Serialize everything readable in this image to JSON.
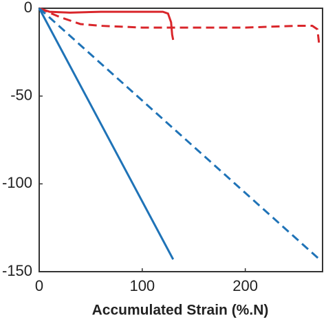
{
  "chart_data": {
    "type": "line",
    "x_label": "Accumulated Strain (%.N)",
    "xlim": [
      0,
      275
    ],
    "xticks": [
      0,
      100,
      200
    ],
    "ylim": [
      -150,
      0
    ],
    "yticks": [
      0,
      -50,
      -100,
      -150
    ],
    "series": [
      {
        "color": "#d9262b",
        "dash": false,
        "x": [
          0,
          10,
          30,
          60,
          100,
          120,
          125,
          128,
          129,
          130
        ],
        "values": [
          0,
          -2,
          -2.5,
          -2,
          -2,
          -2,
          -3,
          -8,
          -15,
          -18
        ]
      },
      {
        "color": "#d9262b",
        "dash": true,
        "x": [
          0,
          20,
          40,
          60,
          100,
          150,
          200,
          250,
          265,
          270,
          272
        ],
        "values": [
          0,
          -5,
          -9,
          -10,
          -11,
          -11,
          -11,
          -10,
          -10,
          -12,
          -22
        ]
      },
      {
        "color": "#1f73b7",
        "dash": false,
        "x": [
          0,
          130
        ],
        "values": [
          0,
          -143
        ]
      },
      {
        "color": "#1f73b7",
        "dash": true,
        "x": [
          0,
          272
        ],
        "values": [
          0,
          -143
        ]
      }
    ]
  }
}
